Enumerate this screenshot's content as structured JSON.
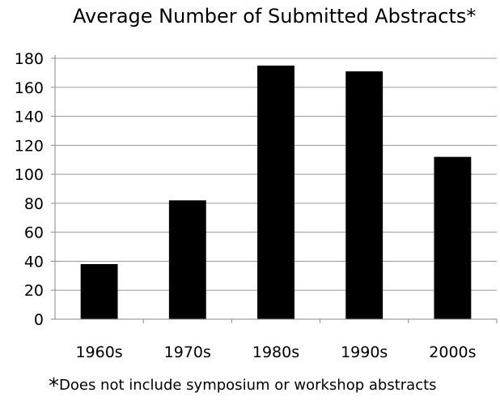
{
  "colors": {
    "bar": "#000000",
    "grid": "#9a9a9a",
    "axis": "#8a8a8a",
    "text": "#000000",
    "background": "#ffffff"
  },
  "chart_data": {
    "type": "bar",
    "title": "Average Number of Submitted Abstracts*",
    "categories": [
      "1960s",
      "1970s",
      "1980s",
      "1990s",
      "2000s"
    ],
    "values": [
      38,
      82,
      175,
      171,
      112
    ],
    "ylim": [
      0,
      180
    ],
    "yticks": [
      0,
      20,
      40,
      60,
      80,
      100,
      120,
      140,
      160,
      180
    ],
    "grid": true,
    "legend": "none"
  },
  "footnote": {
    "star": "*",
    "text": "Does not include symposium or workshop abstracts"
  }
}
